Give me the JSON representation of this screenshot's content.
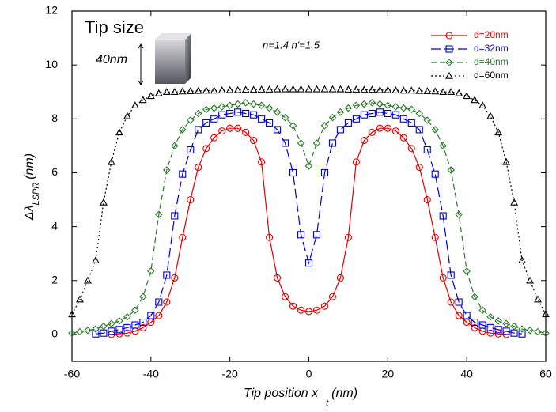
{
  "chart_data": {
    "type": "line",
    "xlabel": {
      "text": "Tip position x",
      "subscript": "t",
      "unit": "(nm)"
    },
    "ylabel": {
      "text": "Δλ",
      "subscript": "LSPR",
      "unit": "(nm)"
    },
    "annotations": {
      "refractive": "n=1.4  n'=1.5",
      "inset_title": "Tip size",
      "inset_size": "40nm"
    },
    "xlim": [
      -60,
      60
    ],
    "xticks": [
      -60,
      -40,
      -20,
      0,
      20,
      40,
      60
    ],
    "ylim": [
      -1,
      12
    ],
    "yticks": [
      0,
      2,
      4,
      6,
      8,
      10,
      12
    ],
    "legend": "upper right",
    "series": [
      {
        "name": "d=20nm",
        "color": "#e00000",
        "dash": "solid",
        "marker": "circle",
        "x": [
          -50,
          -48,
          -46,
          -44,
          -42,
          -40,
          -38,
          -36,
          -34,
          -32,
          -30,
          -28,
          -26,
          -24,
          -22,
          -20,
          -18,
          -16,
          -14,
          -12,
          -10,
          -8,
          -6,
          -4,
          -2,
          0,
          2,
          4,
          6,
          8,
          10,
          12,
          14,
          16,
          18,
          20,
          22,
          24,
          26,
          28,
          30,
          32,
          34,
          36,
          38,
          40,
          42,
          44,
          46,
          48,
          50
        ],
        "values": [
          0,
          0.02,
          0.05,
          0.12,
          0.25,
          0.45,
          0.7,
          1.2,
          2.1,
          3.6,
          5.0,
          6.2,
          6.9,
          7.3,
          7.55,
          7.65,
          7.65,
          7.5,
          7.2,
          6.4,
          3.6,
          2.1,
          1.4,
          1.05,
          0.9,
          0.85,
          0.9,
          1.05,
          1.4,
          2.1,
          3.6,
          6.4,
          7.2,
          7.5,
          7.65,
          7.65,
          7.55,
          7.3,
          6.9,
          6.2,
          5.0,
          3.6,
          2.1,
          1.2,
          0.7,
          0.45,
          0.25,
          0.12,
          0.05,
          0.02,
          0
        ]
      },
      {
        "name": "d=32nm",
        "color": "#0000cc",
        "dash": "longdash",
        "marker": "square",
        "x": [
          -54,
          -52,
          -50,
          -48,
          -46,
          -44,
          -42,
          -40,
          -38,
          -36,
          -34,
          -32,
          -30,
          -28,
          -26,
          -24,
          -22,
          -20,
          -18,
          -16,
          -14,
          -12,
          -10,
          -8,
          -6,
          -4,
          -2,
          0,
          2,
          4,
          6,
          8,
          10,
          12,
          14,
          16,
          18,
          20,
          22,
          24,
          26,
          28,
          30,
          32,
          34,
          36,
          38,
          40,
          42,
          44,
          46,
          48,
          50,
          52,
          54
        ],
        "values": [
          0.02,
          0.05,
          0.12,
          0.18,
          0.25,
          0.35,
          0.45,
          0.7,
          1.2,
          2.2,
          4.4,
          5.95,
          6.85,
          7.6,
          7.85,
          8.0,
          8.15,
          8.2,
          8.25,
          8.2,
          8.15,
          8.0,
          7.85,
          7.6,
          7.1,
          6.0,
          3.7,
          2.65,
          3.7,
          6.0,
          7.1,
          7.6,
          7.85,
          8.0,
          8.15,
          8.2,
          8.25,
          8.2,
          8.15,
          8.0,
          7.85,
          7.6,
          6.85,
          5.95,
          4.4,
          2.2,
          1.2,
          0.7,
          0.45,
          0.35,
          0.25,
          0.18,
          0.12,
          0.05,
          0.02
        ]
      },
      {
        "name": "d=40nm",
        "color": "#2a7a2a",
        "dash": "dash",
        "marker": "diamond",
        "x": [
          -60,
          -58,
          -56,
          -54,
          -52,
          -50,
          -48,
          -46,
          -44,
          -42,
          -40,
          -38,
          -36,
          -34,
          -32,
          -30,
          -28,
          -26,
          -24,
          -22,
          -20,
          -18,
          -16,
          -14,
          -12,
          -10,
          -8,
          -6,
          -4,
          -2,
          0,
          2,
          4,
          6,
          8,
          10,
          12,
          14,
          16,
          18,
          20,
          22,
          24,
          26,
          28,
          30,
          32,
          34,
          36,
          38,
          40,
          42,
          44,
          46,
          48,
          50,
          52,
          54,
          56,
          58,
          60
        ],
        "values": [
          0.05,
          0.1,
          0.15,
          0.2,
          0.3,
          0.4,
          0.5,
          0.65,
          0.9,
          1.4,
          2.35,
          4.45,
          6.1,
          7.0,
          7.6,
          7.95,
          8.2,
          8.35,
          8.4,
          8.45,
          8.5,
          8.55,
          8.6,
          8.55,
          8.5,
          8.4,
          8.25,
          8.05,
          7.75,
          7.1,
          6.25,
          7.1,
          7.75,
          8.05,
          8.25,
          8.4,
          8.5,
          8.55,
          8.6,
          8.55,
          8.5,
          8.45,
          8.4,
          8.35,
          8.2,
          7.95,
          7.6,
          7.0,
          6.1,
          4.45,
          2.35,
          1.4,
          0.9,
          0.65,
          0.5,
          0.4,
          0.3,
          0.2,
          0.15,
          0.1,
          0.05
        ]
      },
      {
        "name": "d=60nm",
        "color": "#000000",
        "dash": "dot",
        "marker": "triangle",
        "x": [
          -60,
          -58,
          -56,
          -54,
          -52,
          -50,
          -48,
          -46,
          -44,
          -42,
          -40,
          -38,
          -36,
          -34,
          -32,
          -30,
          -28,
          -26,
          -24,
          -22,
          -20,
          -18,
          -16,
          -14,
          -12,
          -10,
          -8,
          -6,
          -4,
          -2,
          0,
          2,
          4,
          6,
          8,
          10,
          12,
          14,
          16,
          18,
          20,
          22,
          24,
          26,
          28,
          30,
          32,
          34,
          36,
          38,
          40,
          42,
          44,
          46,
          48,
          50,
          52,
          54,
          56,
          58,
          60
        ],
        "values": [
          0.75,
          1.3,
          2.0,
          2.75,
          4.9,
          6.4,
          7.5,
          8.1,
          8.5,
          8.7,
          8.85,
          8.95,
          9.0,
          9.0,
          9.02,
          9.03,
          9.04,
          9.05,
          9.05,
          9.06,
          9.07,
          9.07,
          9.08,
          9.08,
          9.09,
          9.09,
          9.1,
          9.1,
          9.1,
          9.1,
          9.1,
          9.1,
          9.1,
          9.1,
          9.1,
          9.09,
          9.09,
          9.08,
          9.08,
          9.07,
          9.07,
          9.06,
          9.05,
          9.05,
          9.04,
          9.03,
          9.02,
          9.0,
          9.0,
          8.95,
          8.85,
          8.7,
          8.5,
          8.1,
          7.5,
          6.4,
          4.9,
          2.75,
          2.0,
          1.3,
          0.75
        ]
      }
    ]
  }
}
